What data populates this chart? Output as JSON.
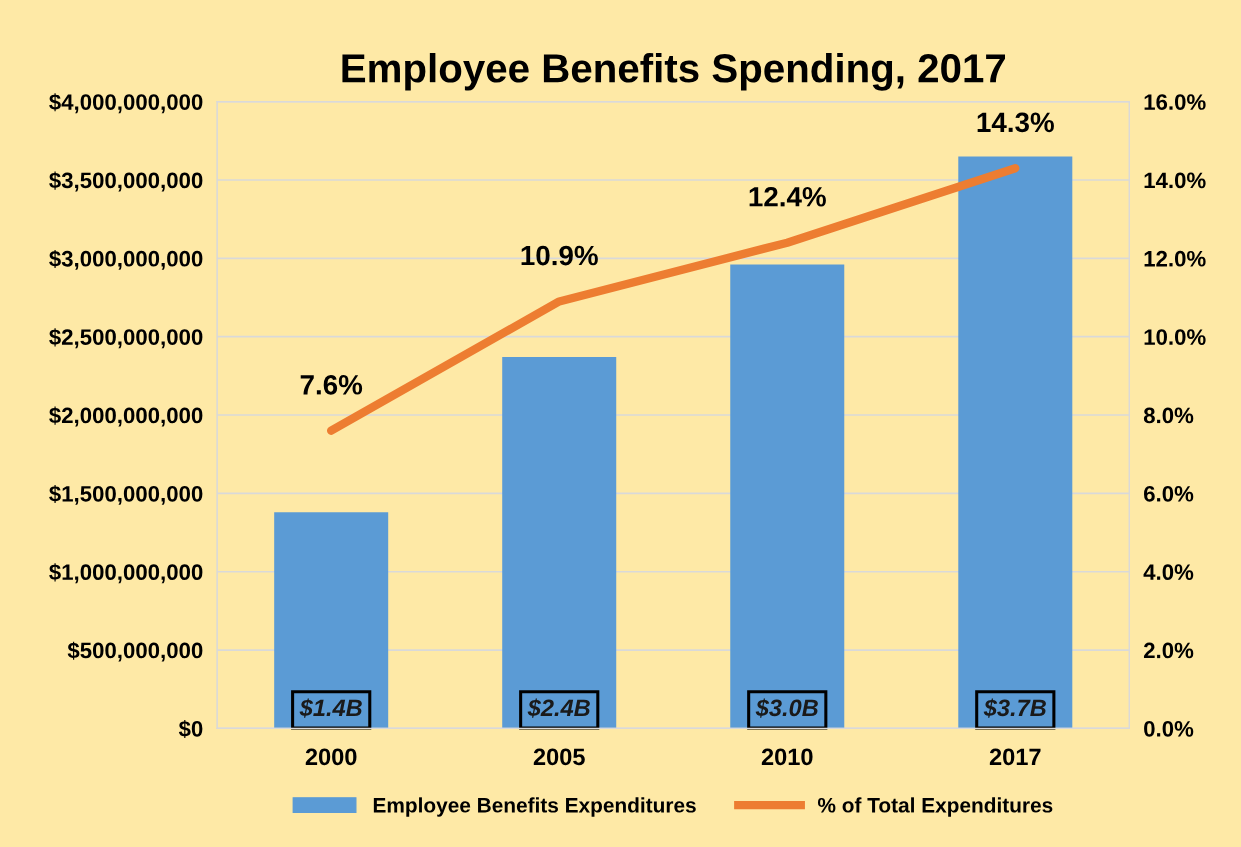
{
  "chart_data": {
    "type": "bar",
    "title": "Employee Benefits Spending, 2017",
    "categories": [
      "2000",
      "2005",
      "2010",
      "2017"
    ],
    "series": [
      {
        "name": "Employee Benefits Expenditures",
        "color": "#5b9bd5",
        "values": [
          1380000000,
          2370000000,
          2960000000,
          3650000000
        ],
        "value_labels": [
          "$1.4B",
          "$2.4B",
          "$3.0B",
          "$3.7B"
        ]
      },
      {
        "name": "% of Total Expenditures",
        "type": "line",
        "axis": "y2",
        "color": "#ed7d31",
        "values": [
          7.6,
          10.9,
          12.4,
          14.3
        ],
        "value_labels": [
          "7.6%",
          "10.9%",
          "12.4%",
          "14.3%"
        ]
      }
    ],
    "ylim": [
      0,
      4000000000
    ],
    "yticks": [
      {
        "value": 0,
        "label": "$0"
      },
      {
        "value": 500000000,
        "label": "$500,000,000"
      },
      {
        "value": 1000000000,
        "label": "$1,000,000,000"
      },
      {
        "value": 1500000000,
        "label": "$1,500,000,000"
      },
      {
        "value": 2000000000,
        "label": "$2,000,000,000"
      },
      {
        "value": 2500000000,
        "label": "$2,500,000,000"
      },
      {
        "value": 3000000000,
        "label": "$3,000,000,000"
      },
      {
        "value": 3500000000,
        "label": "$3,500,000,000"
      },
      {
        "value": 4000000000,
        "label": "$4,000,000,000"
      }
    ],
    "y2lim": [
      0,
      16
    ],
    "y2ticks": [
      {
        "value": 0,
        "label": "0.0%"
      },
      {
        "value": 2,
        "label": "2.0%"
      },
      {
        "value": 4,
        "label": "4.0%"
      },
      {
        "value": 6,
        "label": "6.0%"
      },
      {
        "value": 8,
        "label": "8.0%"
      },
      {
        "value": 10,
        "label": "10.0%"
      },
      {
        "value": 12,
        "label": "12.0%"
      },
      {
        "value": 14,
        "label": "14.0%"
      },
      {
        "value": 16,
        "label": "16.0%"
      }
    ],
    "grid": "y",
    "legend": "bottom",
    "marker": "none",
    "line_style": "solid"
  }
}
